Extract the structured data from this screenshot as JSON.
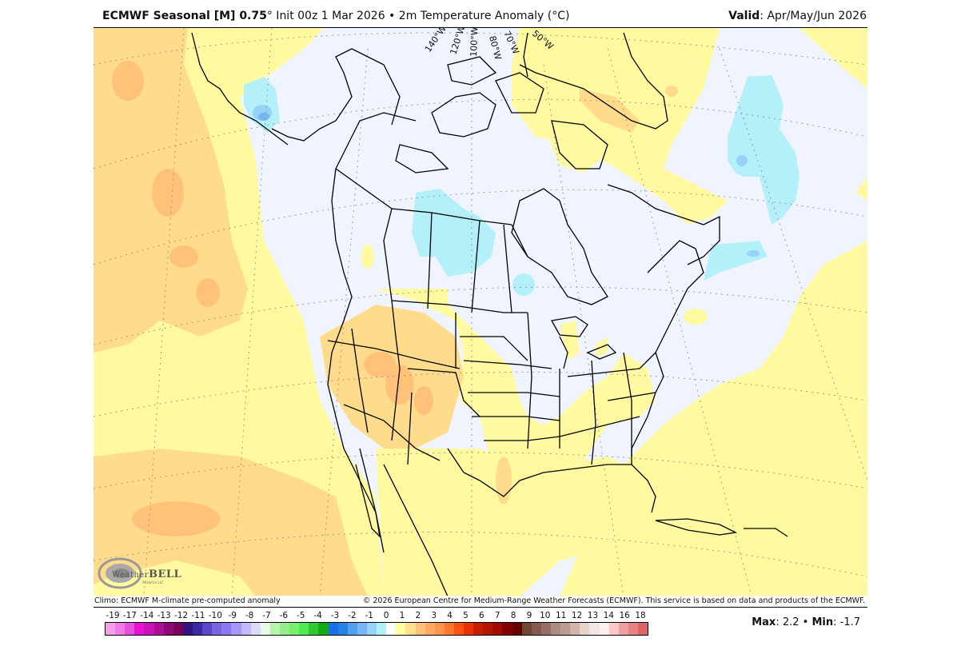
{
  "header": {
    "model_bold": "ECMWF Seasonal [M] 0.75",
    "degree": "°",
    "init": " Init 00z 1 Mar 2026",
    "bullet": " • ",
    "variable": "2m Temperature Anomaly (°C)",
    "valid_label": "Valid",
    "valid_value": ": Apr/May/Jun 2026"
  },
  "map": {
    "longitude_labels": [
      "140°W",
      "120°W",
      "100°W",
      "80°W",
      "70°W",
      "50°W"
    ],
    "logo": {
      "name": "WeatherBELL",
      "text_small": "Weather",
      "text_big": "BELL",
      "sub": "Analytics LLC"
    },
    "colors": {
      "ocean_neutral": "#f0f4ff",
      "light_warm": "#fffaa0",
      "warm_1": "#ffdc8c",
      "warm_2": "#ffc278",
      "cool_1": "#b4f0fa",
      "cool_2": "#96d2fa",
      "cool_3": "#78b4f0"
    }
  },
  "footer": {
    "climo": "Climo: ECMWF M-climate pre-computed anomaly",
    "copyright": "© 2026 European Centre for Medium-Range Weather Forecasts (ECMWF). This service is based on data and products of the ECMWF."
  },
  "legend": {
    "ticks": [
      "-19",
      "-17",
      "-14",
      "-13",
      "-12",
      "-11",
      "-10",
      "-9",
      "-8",
      "-7",
      "-6",
      "-5",
      "-4",
      "-3",
      "-2",
      "-1",
      "0",
      "1",
      "2",
      "3",
      "4",
      "5",
      "6",
      "7",
      "8",
      "9",
      "10",
      "11",
      "12",
      "13",
      "14",
      "16",
      "18"
    ],
    "colors": [
      "#f5a0e6",
      "#f07ae6",
      "#e650dc",
      "#e614d2",
      "#c814b4",
      "#aa0f96",
      "#8c0a78",
      "#78005a",
      "#32147d",
      "#3c28a0",
      "#5a46c8",
      "#7864dc",
      "#8c78f0",
      "#a596fa",
      "#c3b9fa",
      "#dcdcfa",
      "#e6fae6",
      "#b4f5aa",
      "#96eb8c",
      "#78f06e",
      "#50eb50",
      "#32c832",
      "#14aa14",
      "#1e6ee6",
      "#2882e6",
      "#50a0f0",
      "#78b4fa",
      "#96d2fa",
      "#b4f0fa",
      "#ffffff",
      "#ffffa0",
      "#ffe08c",
      "#ffc278",
      "#ffaa64",
      "#ff9650",
      "#ff7832",
      "#ff5014",
      "#e63200",
      "#c81e00",
      "#b41400",
      "#a00a00",
      "#820000",
      "#640000",
      "#6e4632",
      "#825a50",
      "#966e64",
      "#aa8c82",
      "#be9b91",
      "#d2b4aa",
      "#e6d2c8",
      "#f0e6e6",
      "#faf0f0",
      "#ffc8c8",
      "#f0a0a0",
      "#e68282",
      "#dc6464"
    ],
    "max_label": "Max",
    "max_value": ": 2.2",
    "sep": " • ",
    "min_label": "Min",
    "min_value": ": -1.7"
  }
}
